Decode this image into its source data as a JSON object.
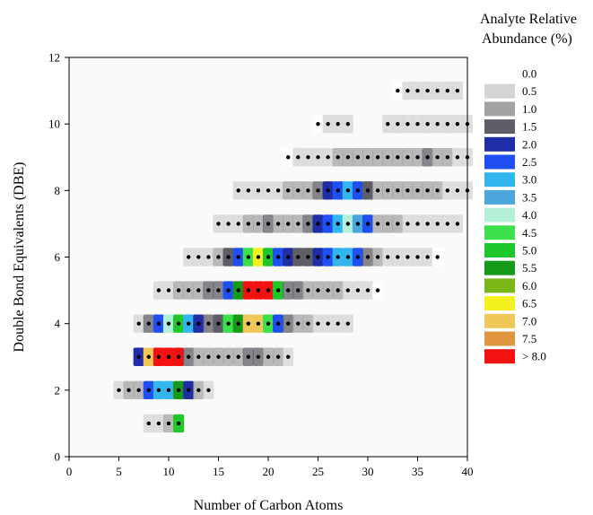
{
  "chart_data": {
    "type": "heatmap",
    "xlabel": "Number of Carbon Atoms",
    "ylabel": "Double Bond Equivalents (DBE)",
    "xlim": [
      0,
      40
    ],
    "ylim": [
      0,
      12
    ],
    "x_ticks": [
      0,
      5,
      10,
      15,
      20,
      25,
      30,
      35,
      40
    ],
    "y_ticks": [
      0,
      2,
      4,
      6,
      8,
      10,
      12
    ],
    "grid": false,
    "legend": {
      "title_line1": "Analyte Relative",
      "title_line2": "Abundance (%)",
      "placement": "right",
      "bins": [
        {
          "label": "0.0",
          "color": "#ffffff"
        },
        {
          "label": "0.5",
          "color": "#d4d4d4"
        },
        {
          "label": "1.0",
          "color": "#a3a3a3"
        },
        {
          "label": "1.5",
          "color": "#5e5e66"
        },
        {
          "label": "2.0",
          "color": "#1f2ea6"
        },
        {
          "label": "2.5",
          "color": "#1f4ff0"
        },
        {
          "label": "3.0",
          "color": "#33b6ee"
        },
        {
          "label": "3.5",
          "color": "#4aa6dc"
        },
        {
          "label": "4.0",
          "color": "#b4f0d8"
        },
        {
          "label": "4.5",
          "color": "#3be04a"
        },
        {
          "label": "5.0",
          "color": "#1fc82a"
        },
        {
          "label": "5.5",
          "color": "#169a1a"
        },
        {
          "label": "6.0",
          "color": "#7ab81a"
        },
        {
          "label": "6.5",
          "color": "#f5f01f"
        },
        {
          "label": "7.0",
          "color": "#f0c85a"
        },
        {
          "label": "7.5",
          "color": "#e0963c"
        },
        {
          "label": "> 8.0",
          "color": "#f21212"
        }
      ]
    },
    "series": [
      {
        "dbe": 1,
        "c_range": [
          8,
          11
        ],
        "abundance": [
          [
            8,
            0.3
          ],
          [
            9,
            0.5
          ],
          [
            10,
            1.0
          ],
          [
            11,
            4.8
          ]
        ]
      },
      {
        "dbe": 2,
        "c_range": [
          5,
          14
        ],
        "abundance": [
          [
            5,
            0.5
          ],
          [
            6,
            0.8
          ],
          [
            7,
            1.0
          ],
          [
            8,
            2.3
          ],
          [
            9,
            3.0
          ],
          [
            10,
            3.2
          ],
          [
            11,
            5.5
          ],
          [
            12,
            2.2
          ],
          [
            13,
            0.8
          ],
          [
            14,
            0.3
          ]
        ]
      },
      {
        "dbe": 3,
        "c_range": [
          7,
          22
        ],
        "abundance": [
          [
            7,
            2.0
          ],
          [
            8,
            7.0
          ],
          [
            9,
            8.5
          ],
          [
            10,
            8.5
          ],
          [
            11,
            8.3
          ],
          [
            12,
            1.3
          ],
          [
            13,
            1.0
          ],
          [
            14,
            0.9
          ],
          [
            15,
            0.8
          ],
          [
            16,
            0.8
          ],
          [
            17,
            0.9
          ],
          [
            18,
            1.3
          ],
          [
            19,
            1.5
          ],
          [
            20,
            1.2
          ],
          [
            21,
            0.9
          ],
          [
            22,
            0.5
          ]
        ]
      },
      {
        "dbe": 4,
        "c_range": [
          7,
          28
        ],
        "abundance": [
          [
            7,
            0.6
          ],
          [
            8,
            1.5
          ],
          [
            9,
            2.4
          ],
          [
            10,
            4.0
          ],
          [
            11,
            5.2
          ],
          [
            12,
            3.0
          ],
          [
            13,
            1.8
          ],
          [
            14,
            1.5
          ],
          [
            15,
            1.6
          ],
          [
            16,
            4.5
          ],
          [
            17,
            5.5
          ],
          [
            18,
            7.0
          ],
          [
            19,
            6.8
          ],
          [
            20,
            4.3
          ],
          [
            21,
            2.5
          ],
          [
            22,
            1.4
          ],
          [
            23,
            1.0
          ],
          [
            24,
            0.8
          ],
          [
            25,
            0.7
          ],
          [
            26,
            0.6
          ],
          [
            27,
            0.5
          ],
          [
            28,
            0.4
          ]
        ]
      },
      {
        "dbe": 5,
        "c_range": [
          9,
          31
        ],
        "abundance": [
          [
            9,
            0.3
          ],
          [
            10,
            0.6
          ],
          [
            11,
            0.9
          ],
          [
            12,
            1.0
          ],
          [
            13,
            1.2
          ],
          [
            14,
            1.3
          ],
          [
            15,
            1.5
          ],
          [
            16,
            2.6
          ],
          [
            17,
            5.3
          ],
          [
            18,
            8.5
          ],
          [
            19,
            8.5
          ],
          [
            20,
            8.4
          ],
          [
            21,
            5.0
          ],
          [
            22,
            1.5
          ],
          [
            23,
            1.3
          ],
          [
            24,
            1.1
          ],
          [
            25,
            1.0
          ],
          [
            26,
            0.9
          ],
          [
            27,
            0.8
          ],
          [
            28,
            0.6
          ],
          [
            29,
            0.5
          ],
          [
            30,
            0.4
          ],
          [
            31,
            0.2
          ]
        ]
      },
      {
        "dbe": 6,
        "c_range": [
          12,
          37
        ],
        "abundance": [
          [
            12,
            0.3
          ],
          [
            13,
            0.5
          ],
          [
            14,
            0.7
          ],
          [
            15,
            0.9
          ],
          [
            16,
            1.6
          ],
          [
            17,
            2.6
          ],
          [
            18,
            4.4
          ],
          [
            19,
            6.7
          ],
          [
            20,
            4.8
          ],
          [
            21,
            2.7
          ],
          [
            22,
            1.8
          ],
          [
            23,
            1.6
          ],
          [
            24,
            1.6
          ],
          [
            25,
            2.0
          ],
          [
            26,
            2.3
          ],
          [
            27,
            3.0
          ],
          [
            28,
            3.2
          ],
          [
            29,
            2.6
          ],
          [
            30,
            1.5
          ],
          [
            31,
            0.9
          ],
          [
            32,
            0.7
          ],
          [
            33,
            0.6
          ],
          [
            34,
            0.5
          ],
          [
            35,
            0.4
          ],
          [
            36,
            0.3
          ],
          [
            37,
            0.2
          ]
        ]
      },
      {
        "dbe": 7,
        "c_range": [
          15,
          39
        ],
        "abundance": [
          [
            15,
            0.3
          ],
          [
            16,
            0.5
          ],
          [
            17,
            0.7
          ],
          [
            18,
            1.0
          ],
          [
            19,
            1.2
          ],
          [
            20,
            1.4
          ],
          [
            21,
            1.2
          ],
          [
            22,
            1.1
          ],
          [
            23,
            1.0
          ],
          [
            24,
            1.4
          ],
          [
            25,
            2.1
          ],
          [
            26,
            2.6
          ],
          [
            27,
            3.2
          ],
          [
            28,
            4.1
          ],
          [
            29,
            3.5
          ],
          [
            30,
            2.5
          ],
          [
            31,
            1.2
          ],
          [
            32,
            0.9
          ],
          [
            33,
            0.8
          ],
          [
            34,
            0.7
          ],
          [
            35,
            0.7
          ],
          [
            36,
            0.6
          ],
          [
            37,
            0.5
          ],
          [
            38,
            0.4
          ],
          [
            39,
            0.3
          ]
        ]
      },
      {
        "dbe": 8,
        "c_range": [
          17,
          40
        ],
        "abundance": [
          [
            17,
            0.3
          ],
          [
            18,
            0.4
          ],
          [
            19,
            0.5
          ],
          [
            20,
            0.6
          ],
          [
            21,
            0.7
          ],
          [
            22,
            0.8
          ],
          [
            23,
            0.9
          ],
          [
            24,
            1.1
          ],
          [
            25,
            1.4
          ],
          [
            26,
            2.1
          ],
          [
            27,
            2.6
          ],
          [
            28,
            3.0
          ],
          [
            29,
            2.5
          ],
          [
            30,
            1.6
          ],
          [
            31,
            1.0
          ],
          [
            32,
            0.9
          ],
          [
            33,
            0.8
          ],
          [
            34,
            0.8
          ],
          [
            35,
            0.9
          ],
          [
            36,
            1.0
          ],
          [
            37,
            0.8
          ],
          [
            38,
            0.6
          ],
          [
            39,
            0.4
          ],
          [
            40,
            0.3
          ]
        ]
      },
      {
        "dbe": 9,
        "c_range": [
          22,
          40
        ],
        "abundance": [
          [
            22,
            0.2
          ],
          [
            23,
            0.3
          ],
          [
            24,
            0.4
          ],
          [
            25,
            0.5
          ],
          [
            26,
            0.6
          ],
          [
            27,
            0.8
          ],
          [
            28,
            0.9
          ],
          [
            29,
            1.0
          ],
          [
            30,
            0.9
          ],
          [
            31,
            0.8
          ],
          [
            32,
            0.8
          ],
          [
            33,
            0.9
          ],
          [
            34,
            1.0
          ],
          [
            35,
            1.2
          ],
          [
            36,
            1.3
          ],
          [
            37,
            1.1
          ],
          [
            38,
            0.8
          ],
          [
            39,
            0.5
          ],
          [
            40,
            0.3
          ]
        ]
      },
      {
        "dbe": 10,
        "c_range": [
          25,
          40
        ],
        "abundance": [
          [
            25,
            0.2
          ],
          [
            26,
            0.3
          ],
          [
            27,
            0.3
          ],
          [
            28,
            0.3
          ],
          [
            32,
            0.3
          ],
          [
            33,
            0.4
          ],
          [
            34,
            0.5
          ],
          [
            35,
            0.6
          ],
          [
            36,
            0.7
          ],
          [
            37,
            0.7
          ],
          [
            38,
            0.6
          ],
          [
            39,
            0.5
          ],
          [
            40,
            0.3
          ]
        ]
      },
      {
        "dbe": 11,
        "c_range": [
          33,
          39
        ],
        "abundance": [
          [
            33,
            0.2
          ],
          [
            34,
            0.3
          ],
          [
            35,
            0.4
          ],
          [
            36,
            0.5
          ],
          [
            37,
            0.5
          ],
          [
            38,
            0.4
          ],
          [
            39,
            0.3
          ]
        ]
      }
    ]
  }
}
